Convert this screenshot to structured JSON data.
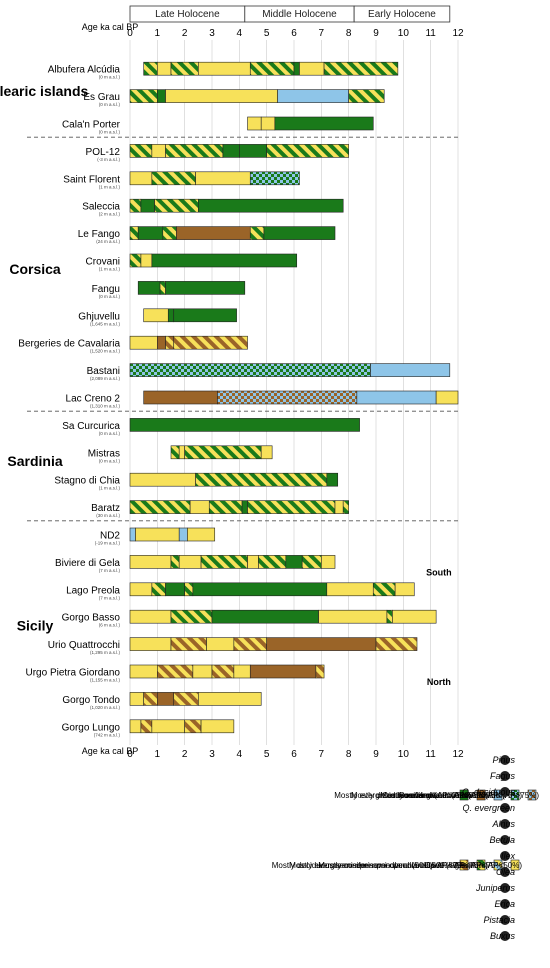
{
  "chart_data": {
    "type": "bar",
    "orientation": "horizontal-bars-rotated-figure",
    "axis_label": "Age ka cal BP",
    "axis_label_bottom": "Age ka cal BP",
    "ticks": [
      "0",
      "1",
      "2",
      "3",
      "4",
      "5",
      "6",
      "7",
      "8",
      "9",
      "10",
      "11",
      "12"
    ],
    "xlim": [
      0,
      12
    ],
    "periods": [
      {
        "label": "Late Holocene",
        "start": 0,
        "end": 4.2
      },
      {
        "label": "Middle Holocene",
        "start": 4.2,
        "end": 8.2
      },
      {
        "label": "Early Holocene",
        "start": 8.2,
        "end": 11.7
      }
    ],
    "regions": [
      {
        "label": "Sicily",
        "sublabels": [
          "North",
          "South"
        ]
      },
      {
        "label": "Sardinia",
        "sublabels": []
      },
      {
        "label": "Corsica",
        "sublabels": []
      },
      {
        "label": "Balearic islands",
        "sublabels": []
      }
    ],
    "sites": [
      {
        "name": "Gorgo Lungo",
        "elev": "(742 m a.s.l.)",
        "segments": [
          [
            0,
            0.4,
            "open"
          ],
          [
            0.4,
            0.8,
            "cdd"
          ],
          [
            0.8,
            2.0,
            "open"
          ],
          [
            2.0,
            2.6,
            "cdd"
          ],
          [
            2.6,
            3.8,
            "open"
          ]
        ]
      },
      {
        "name": "Gorgo Tondo",
        "elev": "(1,020 m a.s.l.)",
        "segments": [
          [
            0,
            0.5,
            "open"
          ],
          [
            0.5,
            1.0,
            "cdd"
          ],
          [
            1.0,
            1.6,
            "dec"
          ],
          [
            1.6,
            2.5,
            "cdd"
          ],
          [
            2.5,
            4.8,
            "open"
          ]
        ]
      },
      {
        "name": "Urgo Pietra Giordano",
        "elev": "(1,155 m a.s.l.)",
        "segments": [
          [
            0,
            1.0,
            "open"
          ],
          [
            1.0,
            2.3,
            "cdd"
          ],
          [
            2.3,
            3.0,
            "open"
          ],
          [
            3.0,
            3.8,
            "cdd"
          ],
          [
            3.8,
            4.4,
            "open"
          ],
          [
            4.4,
            6.8,
            "dec"
          ],
          [
            6.8,
            7.1,
            "cdd"
          ]
        ]
      },
      {
        "name": "Urio Quattrocchi",
        "elev": "(1,295 m a.s.l.)",
        "segments": [
          [
            0,
            1.5,
            "open"
          ],
          [
            1.5,
            2.8,
            "cdd"
          ],
          [
            2.8,
            3.8,
            "open"
          ],
          [
            3.8,
            5.0,
            "cdd"
          ],
          [
            5.0,
            9.0,
            "dec"
          ],
          [
            9.0,
            10.5,
            "cdd"
          ]
        ]
      },
      {
        "name": "Gorgo Basso",
        "elev": "(6 m a.s.l.)",
        "segments": [
          [
            0,
            1.5,
            "open"
          ],
          [
            1.5,
            3.0,
            "sev"
          ],
          [
            3.0,
            6.9,
            "ev"
          ],
          [
            6.9,
            9.4,
            "open"
          ],
          [
            9.4,
            9.6,
            "sev"
          ],
          [
            9.6,
            11.2,
            "open"
          ]
        ]
      },
      {
        "name": "Lago Preola",
        "elev": "(7 m a.s.l.)",
        "segments": [
          [
            0,
            0.8,
            "open"
          ],
          [
            0.8,
            1.3,
            "sev"
          ],
          [
            1.3,
            2.0,
            "ev"
          ],
          [
            2.0,
            2.3,
            "sev"
          ],
          [
            2.3,
            7.2,
            "ev"
          ],
          [
            7.2,
            8.9,
            "open"
          ],
          [
            8.9,
            9.7,
            "sev"
          ],
          [
            9.7,
            10.4,
            "open"
          ]
        ]
      },
      {
        "name": "Biviere di Gela",
        "elev": "(7 m a.s.l.)",
        "segments": [
          [
            0,
            1.5,
            "open"
          ],
          [
            1.5,
            1.8,
            "sev"
          ],
          [
            1.8,
            2.6,
            "open"
          ],
          [
            2.6,
            4.3,
            "sev"
          ],
          [
            4.3,
            4.7,
            "open"
          ],
          [
            4.7,
            5.7,
            "sev"
          ],
          [
            5.7,
            6.3,
            "ev"
          ],
          [
            6.3,
            7.0,
            "sev"
          ],
          [
            7.0,
            7.5,
            "open"
          ]
        ]
      },
      {
        "name": "ND2",
        "elev": "(-19 m a.s.l.)",
        "segments": [
          [
            0,
            0.2,
            "conif"
          ],
          [
            0.2,
            1.8,
            "open"
          ],
          [
            1.8,
            2.1,
            "conif"
          ],
          [
            2.1,
            3.1,
            "open"
          ]
        ]
      },
      {
        "name": "Baratz",
        "elev": "(30 m a.s.l.)",
        "segments": [
          [
            0,
            2.2,
            "sev"
          ],
          [
            2.2,
            2.9,
            "open"
          ],
          [
            2.9,
            4.1,
            "sev"
          ],
          [
            4.1,
            4.3,
            "ev"
          ],
          [
            4.3,
            7.5,
            "sev"
          ],
          [
            7.5,
            7.8,
            "open"
          ],
          [
            7.8,
            8.0,
            "sev"
          ]
        ]
      },
      {
        "name": "Stagno di Chia",
        "elev": "(1 m a.s.l.)",
        "segments": [
          [
            0,
            2.4,
            "open"
          ],
          [
            2.4,
            7.2,
            "sev"
          ],
          [
            7.2,
            7.6,
            "ev"
          ]
        ]
      },
      {
        "name": "Mistras",
        "elev": "(0 m a.s.l.)",
        "segments": [
          [
            1.5,
            1.8,
            "sev"
          ],
          [
            1.8,
            2.0,
            "open"
          ],
          [
            2.0,
            4.8,
            "sev"
          ],
          [
            4.8,
            5.2,
            "open"
          ]
        ]
      },
      {
        "name": "Sa Curcurica",
        "elev": "(0 m a.s.l.)",
        "segments": [
          [
            0,
            8.4,
            "ev"
          ]
        ]
      },
      {
        "name": "Lac Creno 2",
        "elev": "(1,310 m a.s.l.)",
        "segments": [
          [
            0.5,
            3.2,
            "dec"
          ],
          [
            3.2,
            8.3,
            "ccd"
          ],
          [
            8.3,
            11.2,
            "conif"
          ],
          [
            11.2,
            12.0,
            "open"
          ]
        ]
      },
      {
        "name": "Bastani",
        "elev": "(2,089 m a.s.l.)",
        "segments": [
          [
            0,
            8.8,
            "cev"
          ],
          [
            8.8,
            11.7,
            "conif"
          ]
        ]
      },
      {
        "name": "Bergeries de Cavalaria",
        "elev": "(1,520 m a.s.l.)",
        "segments": [
          [
            0,
            1.0,
            "open"
          ],
          [
            1.0,
            1.3,
            "dec"
          ],
          [
            1.3,
            1.6,
            "cdd"
          ],
          [
            1.6,
            4.3,
            "cdd"
          ]
        ]
      },
      {
        "name": "Ghjuvellu",
        "elev": "(1,645 m a.s.l.)",
        "segments": [
          [
            0.5,
            1.4,
            "open"
          ],
          [
            1.4,
            1.6,
            "ev"
          ],
          [
            1.6,
            3.9,
            "ev"
          ]
        ]
      },
      {
        "name": "Fangu",
        "elev": "(0 m a.s.l.)",
        "segments": [
          [
            0.3,
            1.1,
            "ev"
          ],
          [
            1.1,
            1.3,
            "sev"
          ],
          [
            1.3,
            4.2,
            "ev"
          ]
        ]
      },
      {
        "name": "Crovani",
        "elev": "(1 m a.s.l.)",
        "segments": [
          [
            0,
            0.4,
            "sev"
          ],
          [
            0.4,
            0.8,
            "open"
          ],
          [
            0.8,
            6.1,
            "ev"
          ]
        ]
      },
      {
        "name": "Le Fango",
        "elev": "(24 m a.s.l.)",
        "segments": [
          [
            0,
            0.3,
            "sev"
          ],
          [
            0.3,
            1.2,
            "ev"
          ],
          [
            1.2,
            1.7,
            "sev"
          ],
          [
            1.7,
            4.4,
            "dec"
          ],
          [
            4.4,
            4.9,
            "sev"
          ],
          [
            4.9,
            7.5,
            "ev"
          ]
        ]
      },
      {
        "name": "Saleccia",
        "elev": "(2 m a.s.l.)",
        "segments": [
          [
            0,
            0.4,
            "sev"
          ],
          [
            0.4,
            0.9,
            "ev"
          ],
          [
            0.9,
            2.5,
            "sev"
          ],
          [
            2.5,
            7.8,
            "ev"
          ]
        ]
      },
      {
        "name": "Saint Florent",
        "elev": "(1 m a.s.l.)",
        "segments": [
          [
            0,
            0.8,
            "open"
          ],
          [
            0.8,
            2.4,
            "sev"
          ],
          [
            2.4,
            4.4,
            "open"
          ],
          [
            4.4,
            6.2,
            "cev"
          ]
        ]
      },
      {
        "name": "POL-12",
        "elev": "(-3 m a.s.l.)",
        "segments": [
          [
            0,
            0.8,
            "sev"
          ],
          [
            0.8,
            1.3,
            "open"
          ],
          [
            1.3,
            3.4,
            "sev"
          ],
          [
            3.4,
            4.0,
            "ev"
          ],
          [
            4.0,
            5.0,
            "ev"
          ],
          [
            5.0,
            8.0,
            "sev"
          ]
        ]
      },
      {
        "name": "Cala'n Porter",
        "elev": "(0 m a.s.l.)",
        "segments": [
          [
            4.3,
            4.8,
            "open"
          ],
          [
            4.8,
            5.3,
            "open"
          ],
          [
            5.3,
            8.9,
            "ev"
          ]
        ]
      },
      {
        "name": "Es Grau",
        "elev": "(0 m a.s.l.)",
        "segments": [
          [
            0,
            1.0,
            "sev"
          ],
          [
            1.0,
            1.3,
            "ev"
          ],
          [
            1.3,
            5.4,
            "open"
          ],
          [
            5.4,
            8.0,
            "conif"
          ],
          [
            8.0,
            9.3,
            "sev"
          ]
        ]
      },
      {
        "name": "Albufera Alcúdia",
        "elev": "(0 m a.s.l.)",
        "segments": [
          [
            0.5,
            1.0,
            "sev"
          ],
          [
            1.0,
            1.5,
            "open"
          ],
          [
            1.5,
            2.5,
            "sev"
          ],
          [
            2.5,
            4.4,
            "open"
          ],
          [
            4.4,
            6.0,
            "sev"
          ],
          [
            6.0,
            6.2,
            "ev"
          ],
          [
            6.2,
            7.1,
            "open"
          ],
          [
            7.1,
            9.8,
            "sev"
          ]
        ]
      }
    ],
    "legend": [
      {
        "key": "ev",
        "label": "Mostly evergreen woodland (AP>75%)"
      },
      {
        "key": "dec",
        "label": "Mostly deciduous woodland (AP>75%)"
      },
      {
        "key": "conif",
        "label": "Mostly conifer woodland (AP>75%)"
      },
      {
        "key": "cev",
        "label": "Conifer-evergreen woodland (AP>75%)"
      },
      {
        "key": "ccd",
        "label": "Conifer-deciduous woodland (AP>75%)"
      },
      {
        "key": "cdd",
        "label": "Mostly deciduous semi-open woodland (50%< AP<75%)"
      },
      {
        "key": "sev",
        "label": "Mostly evergreen semi-open woodland (50%< AP<75%)"
      },
      {
        "key": "csev",
        "label": "Mostly conifer semi-open woodland (50%< AP<75%)"
      },
      {
        "key": "open",
        "label": "Open vegetation (AP<50%)"
      }
    ],
    "taxa": [
      "Pinus",
      "Fagus",
      "Q. deciduous",
      "Q. evergreen",
      "Alnus",
      "Betula",
      "Ilex",
      "Olea",
      "Juniperus",
      "Erica",
      "Pistacia",
      "Buxus"
    ],
    "colors": {
      "ev": "#1a7a1a",
      "dec": "#9a6428",
      "conif": "#8ec5e8",
      "open": "#f7e15a",
      "ev_alt": "#1a7a1a",
      "dec_alt": "#c98a3c",
      "grid": "#bbbbbb"
    }
  }
}
